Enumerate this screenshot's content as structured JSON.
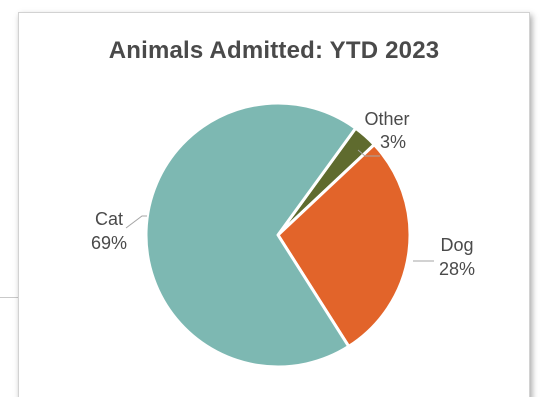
{
  "chart_data": {
    "type": "pie",
    "title": "Animals Admitted: YTD 2023",
    "categories": [
      "Other",
      "Dog",
      "Cat"
    ],
    "values": [
      3,
      28,
      69
    ],
    "labels": [
      {
        "name": "Other",
        "pct": "3%"
      },
      {
        "name": "Dog",
        "pct": "28%"
      },
      {
        "name": "Cat",
        "pct": "69%"
      }
    ],
    "colors": {
      "Other": "#5f6b2e",
      "Dog": "#e2642a",
      "Cat": "#7db8b2"
    },
    "legend": "none"
  }
}
